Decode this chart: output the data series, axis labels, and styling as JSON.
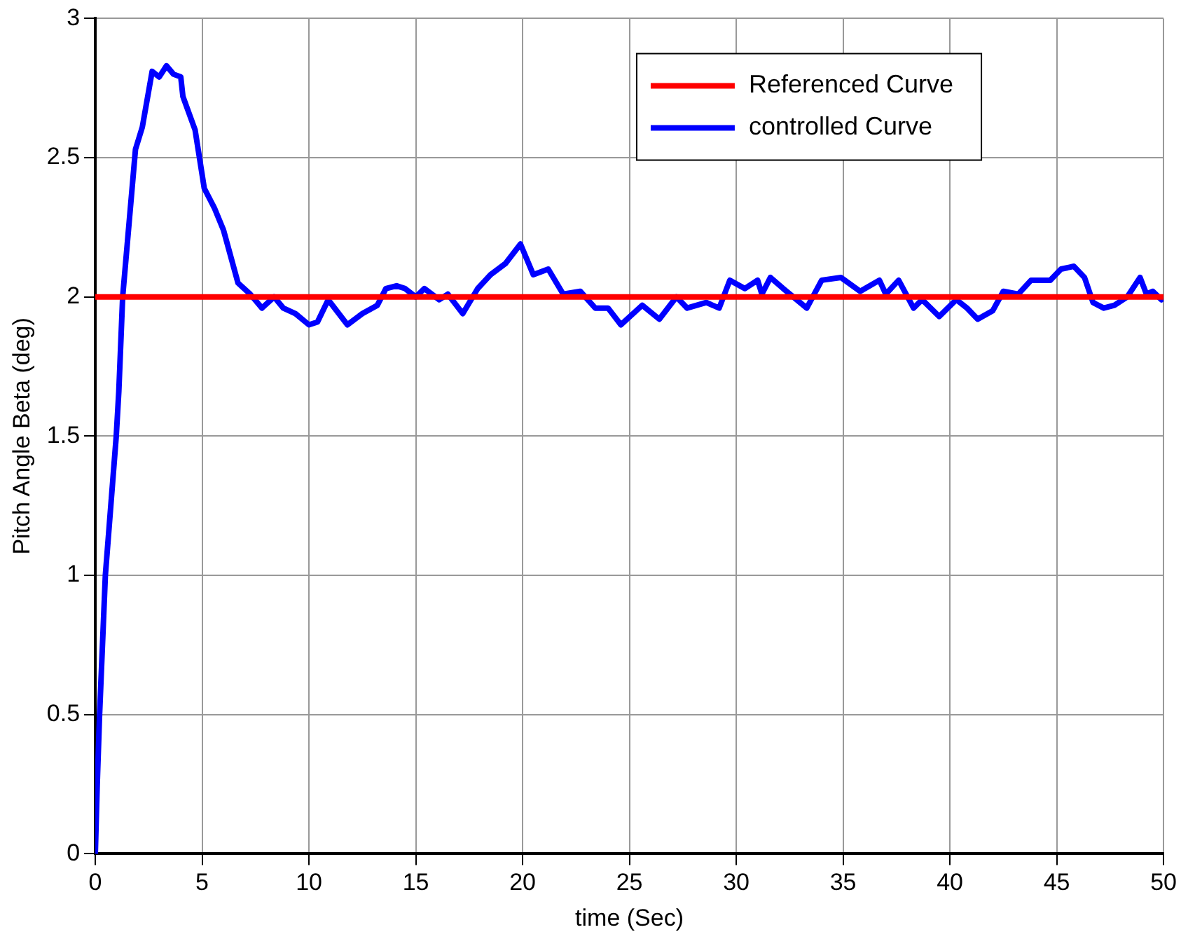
{
  "chart_data": {
    "type": "line",
    "xlabel": "time (Sec)",
    "ylabel": "Pitch Angle Beta (deg)",
    "xlim": [
      0,
      50
    ],
    "ylim": [
      0,
      3
    ],
    "xticks": [
      0,
      5,
      10,
      15,
      20,
      25,
      30,
      35,
      40,
      45,
      50
    ],
    "yticks": [
      0,
      0.5,
      1,
      1.5,
      2,
      2.5,
      3
    ],
    "grid": true,
    "legend": "top right",
    "line_style": "solid",
    "marker": "none",
    "series": [
      {
        "name": "Referenced Curve",
        "color": "#ff0000",
        "x": [
          0,
          50
        ],
        "values": [
          2,
          2
        ]
      },
      {
        "name": "controlled Curve",
        "color": "#0000ff",
        "x": [
          0,
          0.09,
          0.2,
          0.47,
          0.98,
          1.1,
          1.28,
          1.88,
          2.2,
          2.66,
          2.99,
          3.33,
          3.66,
          4.0,
          4.1,
          4.67,
          5.1,
          5.57,
          6.0,
          6.68,
          7.25,
          7.8,
          8.37,
          8.8,
          9.37,
          10.0,
          10.4,
          10.9,
          11.8,
          12.5,
          13.2,
          13.6,
          14.1,
          14.5,
          15.0,
          15.4,
          16.1,
          16.5,
          17.0,
          17.2,
          17.9,
          18.5,
          19.2,
          19.9,
          20.5,
          21.2,
          21.9,
          22.7,
          23.4,
          24.0,
          24.6,
          25.6,
          26.4,
          27.2,
          27.7,
          28.6,
          29.2,
          29.7,
          30.4,
          31.0,
          31.2,
          31.6,
          32.2,
          33.3,
          34.0,
          34.9,
          35.8,
          36.7,
          37.0,
          37.6,
          38.3,
          38.7,
          39.5,
          40.3,
          40.8,
          41.3,
          42.0,
          42.5,
          43.2,
          43.8,
          44.7,
          45.2,
          45.8,
          46.3,
          46.7,
          47.2,
          47.7,
          48.3,
          48.9,
          49.2,
          49.5,
          49.9
        ],
        "values": [
          0,
          0.25,
          0.5,
          1.0,
          1.5,
          1.66,
          2.0,
          2.53,
          2.61,
          2.81,
          2.79,
          2.83,
          2.8,
          2.79,
          2.72,
          2.6,
          2.39,
          2.32,
          2.24,
          2.05,
          2.01,
          1.96,
          2.0,
          1.96,
          1.94,
          1.9,
          1.91,
          1.99,
          1.9,
          1.94,
          1.97,
          2.03,
          2.04,
          2.03,
          2.0,
          2.03,
          1.99,
          2.01,
          1.96,
          1.94,
          2.03,
          2.08,
          2.12,
          2.19,
          2.08,
          2.1,
          2.01,
          2.02,
          1.96,
          1.96,
          1.9,
          1.97,
          1.92,
          2.0,
          1.96,
          1.98,
          1.96,
          2.06,
          2.03,
          2.06,
          2.01,
          2.07,
          2.03,
          1.96,
          2.06,
          2.07,
          2.02,
          2.06,
          2.01,
          2.06,
          1.96,
          1.99,
          1.93,
          1.99,
          1.96,
          1.92,
          1.95,
          2.02,
          2.01,
          2.06,
          2.06,
          2.1,
          2.11,
          2.07,
          1.98,
          1.96,
          1.97,
          2.0,
          2.07,
          2.01,
          2.02,
          1.99
        ]
      }
    ]
  }
}
